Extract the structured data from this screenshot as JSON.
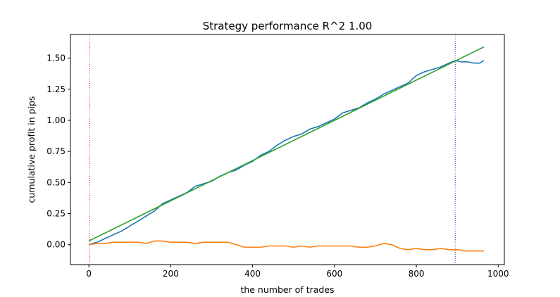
{
  "chart_data": {
    "type": "line",
    "title": "Strategy performance R^2 1.00",
    "xlabel": "the number of trades",
    "ylabel": "cumulative profit in pips",
    "xlim": [
      -45,
      1015
    ],
    "ylim": [
      -0.16,
      1.69
    ],
    "xticks": [
      0,
      200,
      400,
      600,
      800,
      1000
    ],
    "xtick_labels": [
      "0",
      "200",
      "400",
      "600",
      "800",
      "1000"
    ],
    "yticks": [
      0.0,
      0.25,
      0.5,
      0.75,
      1.0,
      1.25,
      1.5
    ],
    "ytick_labels": [
      "0.00",
      "0.25",
      "0.50",
      "0.75",
      "1.00",
      "1.25",
      "1.50"
    ],
    "grid": false,
    "vlines": [
      {
        "x": 2,
        "color": "#e31a1c",
        "style": "dotted"
      },
      {
        "x": 895,
        "color": "#3b2bd9",
        "style": "dotted"
      }
    ],
    "series": [
      {
        "color": "#1f77b4",
        "x": [
          0,
          20,
          40,
          60,
          80,
          100,
          120,
          140,
          160,
          180,
          200,
          220,
          240,
          260,
          280,
          300,
          320,
          340,
          360,
          380,
          400,
          420,
          440,
          460,
          480,
          500,
          520,
          540,
          560,
          580,
          600,
          620,
          640,
          660,
          680,
          700,
          720,
          740,
          760,
          780,
          800,
          820,
          840,
          860,
          880,
          895,
          910,
          925,
          940,
          955,
          965
        ],
        "y": [
          0.0,
          0.02,
          0.05,
          0.08,
          0.11,
          0.15,
          0.19,
          0.23,
          0.27,
          0.33,
          0.36,
          0.39,
          0.42,
          0.47,
          0.49,
          0.51,
          0.55,
          0.58,
          0.6,
          0.64,
          0.67,
          0.72,
          0.75,
          0.8,
          0.84,
          0.87,
          0.89,
          0.93,
          0.95,
          0.98,
          1.01,
          1.06,
          1.08,
          1.1,
          1.14,
          1.17,
          1.21,
          1.24,
          1.27,
          1.3,
          1.36,
          1.39,
          1.41,
          1.43,
          1.46,
          1.48,
          1.47,
          1.47,
          1.46,
          1.46,
          1.48
        ]
      },
      {
        "color": "#ff7f0e",
        "x": [
          0,
          20,
          40,
          60,
          80,
          100,
          120,
          140,
          160,
          180,
          200,
          220,
          240,
          260,
          280,
          300,
          320,
          340,
          360,
          380,
          400,
          420,
          440,
          460,
          480,
          500,
          520,
          540,
          560,
          580,
          600,
          620,
          640,
          660,
          680,
          700,
          720,
          740,
          760,
          780,
          800,
          820,
          840,
          860,
          880,
          900,
          920,
          940,
          965
        ],
        "y": [
          0.0,
          0.01,
          0.01,
          0.02,
          0.02,
          0.02,
          0.02,
          0.01,
          0.03,
          0.03,
          0.02,
          0.02,
          0.02,
          0.01,
          0.02,
          0.02,
          0.02,
          0.02,
          0.0,
          -0.02,
          -0.02,
          -0.02,
          -0.01,
          -0.01,
          -0.01,
          -0.02,
          -0.01,
          -0.02,
          -0.01,
          -0.01,
          -0.01,
          -0.01,
          -0.01,
          -0.02,
          -0.02,
          -0.01,
          0.01,
          0.0,
          -0.03,
          -0.04,
          -0.03,
          -0.04,
          -0.04,
          -0.03,
          -0.04,
          -0.04,
          -0.05,
          -0.05,
          -0.05
        ]
      },
      {
        "color": "#2ca02c",
        "x": [
          0,
          965
        ],
        "y": [
          0.03,
          1.59
        ]
      }
    ]
  }
}
